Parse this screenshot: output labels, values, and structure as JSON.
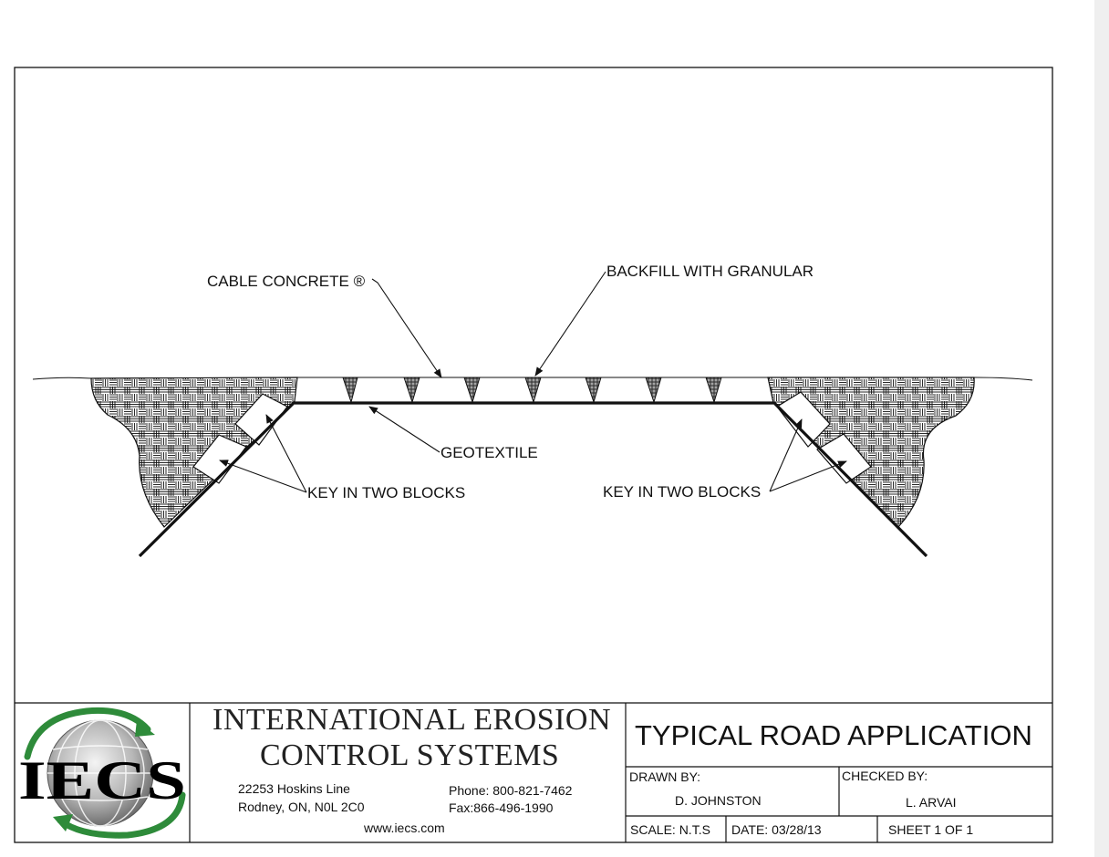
{
  "labels": {
    "cable_concrete": "CABLE CONCRETE ®",
    "backfill": "BACKFILL WITH GRANULAR",
    "geotextile": "GEOTEXTILE",
    "key_left": "KEY IN TWO BLOCKS",
    "key_right": "KEY IN TWO BLOCKS"
  },
  "title_block": {
    "logo_text": "IECS",
    "company_line1": "INTERNATIONAL EROSION",
    "company_line2": "CONTROL SYSTEMS",
    "address_line1": "22253 Hoskins Line",
    "address_line2": "Rodney, ON, N0L 2C0",
    "phone": "Phone: 800-821-7462",
    "fax": "Fax:866-496-1990",
    "website": "www.iecs.com",
    "drawing_title": "TYPICAL ROAD APPLICATION",
    "drawn_by_label": "DRAWN BY:",
    "drawn_by": "D. JOHNSTON",
    "checked_by_label": "CHECKED BY:",
    "checked_by": "L. ARVAI",
    "scale": "SCALE: N.T.S",
    "date": "DATE:   03/28/13",
    "sheet": "SHEET 1 OF 1"
  },
  "colors": {
    "line": "#111111",
    "logo_green": "#2e8b3a"
  }
}
